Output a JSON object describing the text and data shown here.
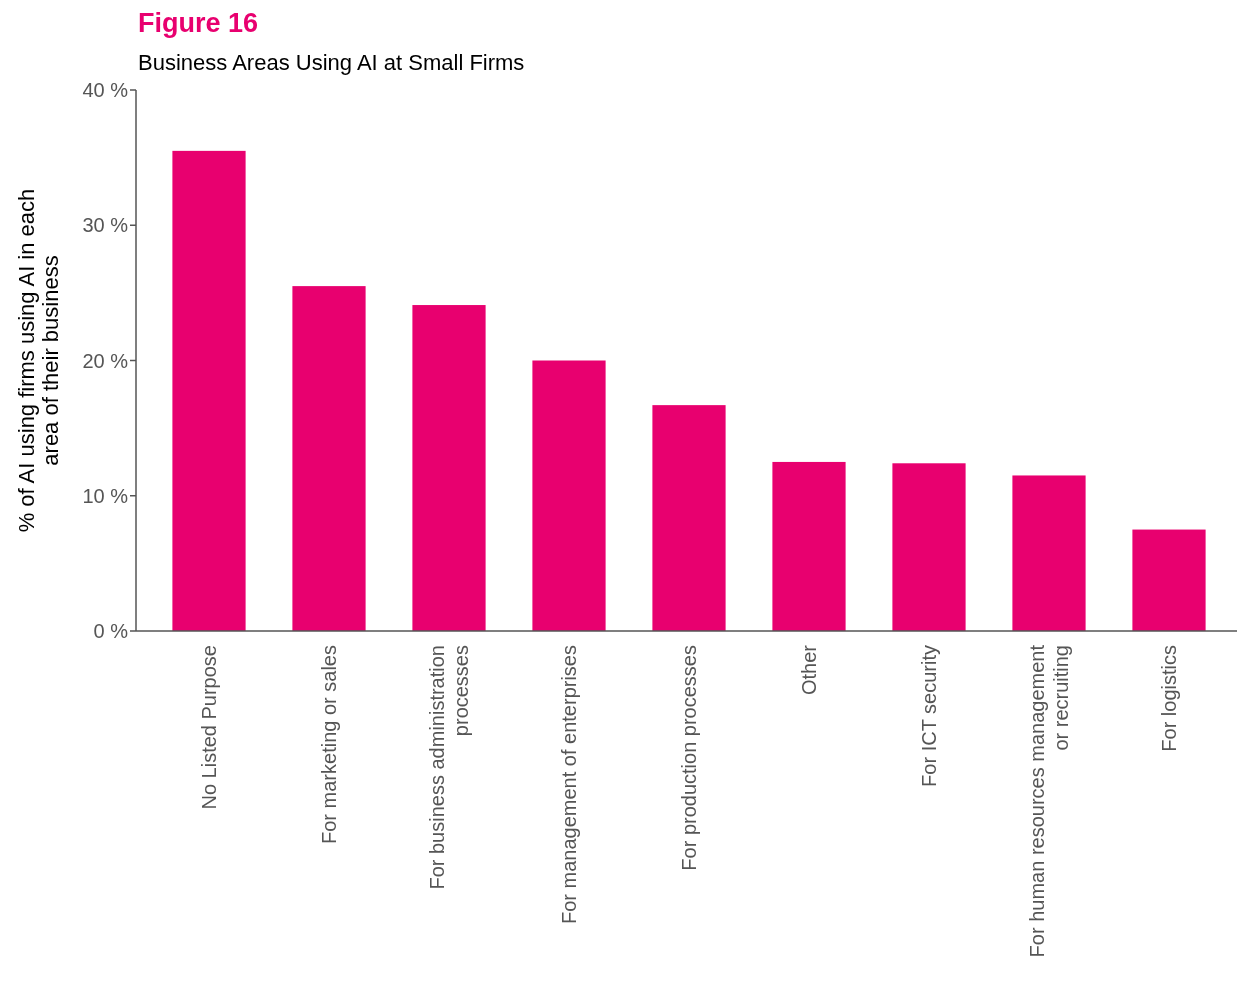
{
  "chart_data": {
    "type": "bar",
    "title": "Figure 16",
    "subtitle": "Business Areas Using AI at Small Firms",
    "ylabel": "% of AI using firms using AI in each\narea of their business",
    "categories": [
      "No Listed Purpose",
      "For marketing or sales",
      "For business administration\nprocesses",
      "For management of enterprises",
      "For production processes",
      "Other",
      "For ICT security",
      "For human resources management\nor recruiting",
      "For logistics"
    ],
    "values": [
      35.5,
      25.5,
      24.1,
      20.0,
      16.7,
      12.5,
      12.4,
      11.5,
      7.5
    ],
    "color": "#e8006f",
    "ylim": [
      0,
      40
    ],
    "yticks": [
      {
        "value": 0,
        "label": "0 %"
      },
      {
        "value": 10,
        "label": "10 %"
      },
      {
        "value": 20,
        "label": "20 %"
      },
      {
        "value": 30,
        "label": "30 %"
      },
      {
        "value": 40,
        "label": "40 %"
      }
    ],
    "grid": false
  }
}
